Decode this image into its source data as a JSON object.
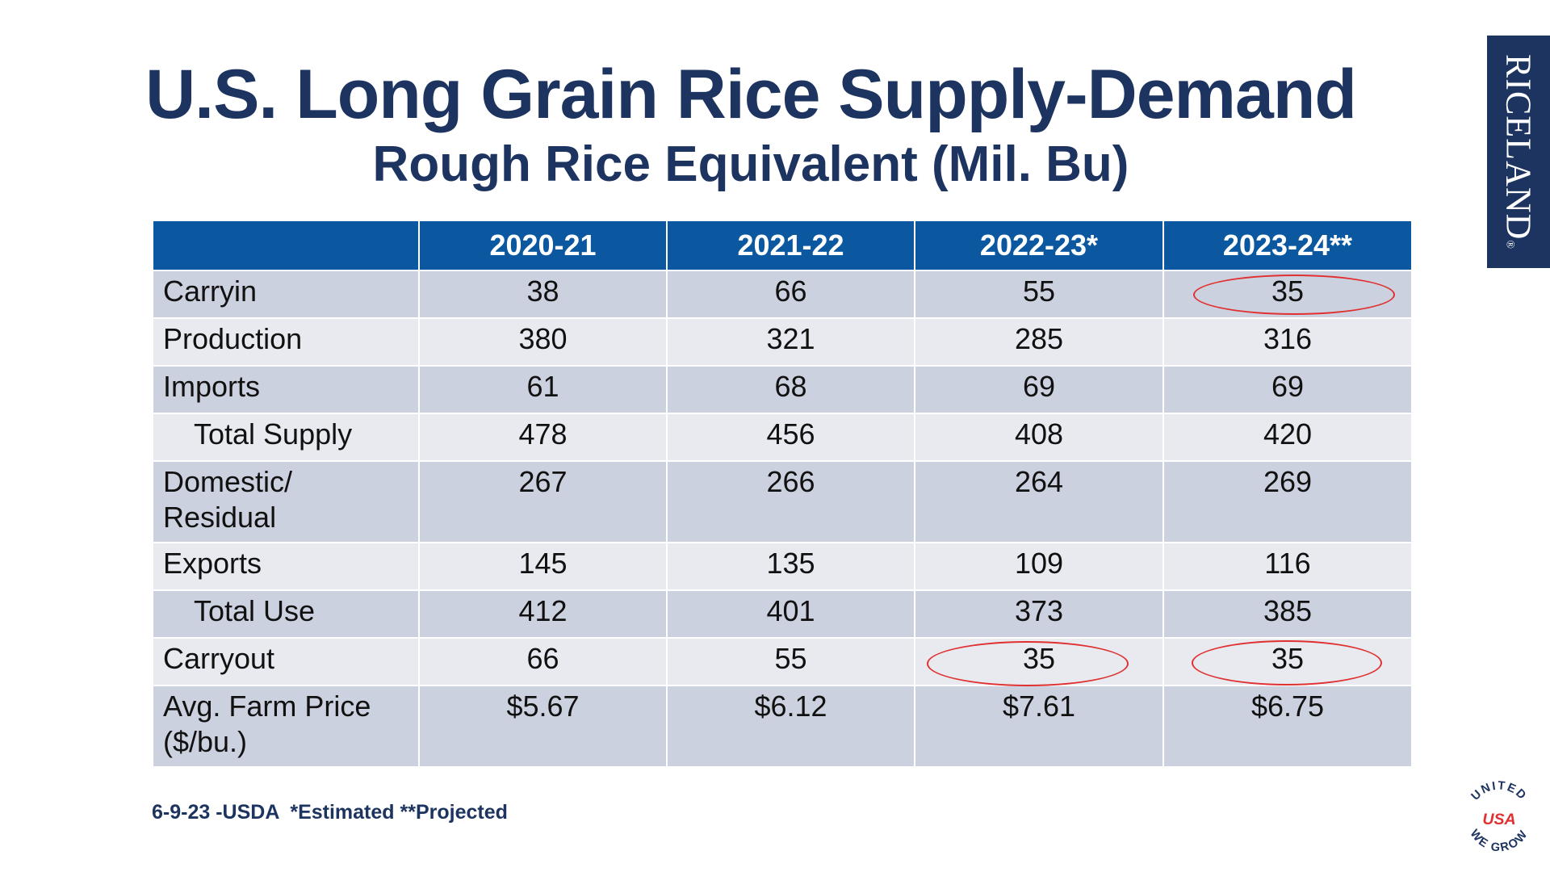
{
  "title": "U.S. Long Grain Rice Supply-Demand",
  "subtitle": "Rough Rice Equivalent (Mil. Bu)",
  "brand": "RICELAND",
  "brand_mark": "®",
  "table": {
    "columns": [
      "",
      "2020-21",
      "2021-22",
      "2022-23*",
      "2023-24**"
    ],
    "rows": [
      {
        "label": "Carryin",
        "values": [
          "38",
          "66",
          "55",
          "35"
        ]
      },
      {
        "label": "Production",
        "values": [
          "380",
          "321",
          "285",
          "316"
        ]
      },
      {
        "label": "Imports",
        "values": [
          "61",
          "68",
          "69",
          "69"
        ]
      },
      {
        "label": "Total Supply",
        "values": [
          "478",
          "456",
          "408",
          "420"
        ]
      },
      {
        "label": "Domestic/ Residual",
        "values": [
          "267",
          "266",
          "264",
          "269"
        ]
      },
      {
        "label": "Exports",
        "values": [
          "145",
          "135",
          "109",
          "116"
        ]
      },
      {
        "label": "Total Use",
        "values": [
          "412",
          "401",
          "373",
          "385"
        ]
      },
      {
        "label": "Carryout",
        "values": [
          "66",
          "55",
          "35",
          "35"
        ]
      },
      {
        "label": "Avg. Farm Price ($/bu.)",
        "values": [
          "$5.67",
          "$6.12",
          "$7.61",
          "$6.75"
        ]
      }
    ]
  },
  "footer": "6-9-23 -USDA  *Estimated **Projected",
  "badge": {
    "top": "UNITED",
    "middle": "USA",
    "bottom": "WE GROW"
  },
  "colors": {
    "navy": "#1d3461",
    "header_blue": "#0b58a1",
    "row_dark": "#ccd1df",
    "row_light": "#e8eaf0",
    "highlight": "#e03030"
  }
}
